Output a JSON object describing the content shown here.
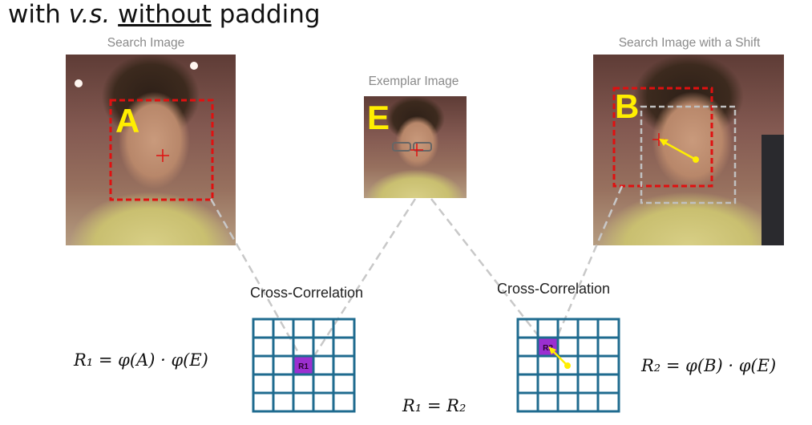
{
  "title": {
    "part1": "with ",
    "part2": "v.s.",
    "part3": " ",
    "part4": "without",
    "part5": " padding"
  },
  "panels": {
    "search": {
      "caption": "Search Image",
      "letter": "A"
    },
    "exemplar": {
      "caption": "Exemplar Image",
      "letter": "E"
    },
    "shifted": {
      "caption": "Search Image with a Shift",
      "letter": "B"
    }
  },
  "correlation": {
    "left_label": "Cross-Correlation",
    "right_label": "Cross-Correlation",
    "left_cell": "R1",
    "right_cell": "R2"
  },
  "formulas": {
    "r1": "R₁ = φ(A) · φ(E)",
    "r2": "R₂ = φ(B) · φ(E)",
    "eq": "R₁ = R₂"
  },
  "colors": {
    "grid": "#1f6b8f",
    "highlight": "#9b2fd0",
    "dashed_red": "#e01010",
    "dashed_gray": "#c0c0c0",
    "arrow": "#ffee00",
    "letter": "#ffee00"
  }
}
